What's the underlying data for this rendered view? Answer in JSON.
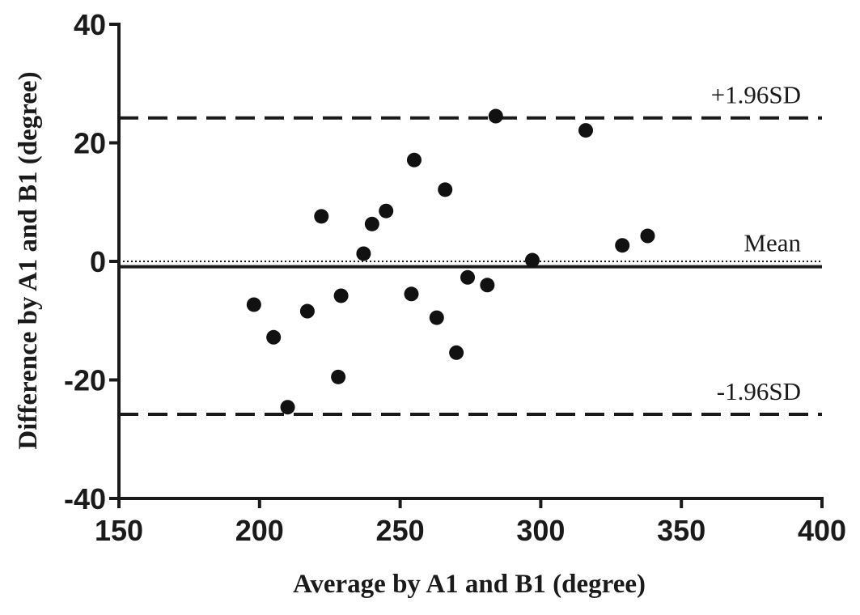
{
  "chart_data": {
    "type": "scatter",
    "xlabel": "Average by A1 and B1 (degree)",
    "ylabel": "Difference by A1 and B1 (degree)",
    "xlim": [
      150,
      400
    ],
    "ylim": [
      -40,
      40
    ],
    "xticks": [
      150,
      200,
      250,
      300,
      350,
      400
    ],
    "yticks": [
      -40,
      -20,
      0,
      20,
      40
    ],
    "xtick_labels": [
      "150",
      "200",
      "250",
      "300",
      "350",
      "400"
    ],
    "ytick_labels": [
      "-40",
      "-20",
      "0",
      "20",
      "40"
    ],
    "grid": false,
    "points": [
      {
        "x": 198,
        "y": -7.3
      },
      {
        "x": 205,
        "y": -12.8
      },
      {
        "x": 210,
        "y": -24.6
      },
      {
        "x": 217,
        "y": -8.4
      },
      {
        "x": 222,
        "y": 7.6
      },
      {
        "x": 228,
        "y": -19.5
      },
      {
        "x": 229,
        "y": -5.8
      },
      {
        "x": 237,
        "y": 1.3
      },
      {
        "x": 240,
        "y": 6.3
      },
      {
        "x": 245,
        "y": 8.5
      },
      {
        "x": 254,
        "y": -5.5
      },
      {
        "x": 255,
        "y": 17.1
      },
      {
        "x": 263,
        "y": -9.5
      },
      {
        "x": 266,
        "y": 12.1
      },
      {
        "x": 270,
        "y": -15.4
      },
      {
        "x": 274,
        "y": -2.7
      },
      {
        "x": 281,
        "y": -4.0
      },
      {
        "x": 284,
        "y": 24.5
      },
      {
        "x": 297,
        "y": 0.2
      },
      {
        "x": 316,
        "y": 22.1
      },
      {
        "x": 329,
        "y": 2.7
      },
      {
        "x": 338,
        "y": 4.3
      }
    ],
    "reference_lines": [
      {
        "label": "+1.96SD",
        "y": 24.2,
        "style": "dashed"
      },
      {
        "label": "Mean",
        "y": -0.9,
        "style": "solid"
      },
      {
        "label": "",
        "y": 0,
        "style": "dotted"
      },
      {
        "label": "-1.96SD",
        "y": -25.8,
        "style": "dashed"
      }
    ]
  }
}
